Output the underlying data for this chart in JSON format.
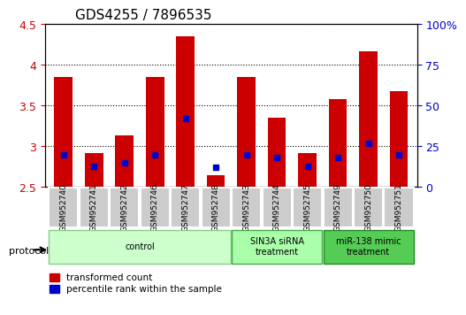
{
  "title": "GDS4255 / 7896535",
  "samples": [
    "GSM952740",
    "GSM952741",
    "GSM952742",
    "GSM952746",
    "GSM952747",
    "GSM952748",
    "GSM952743",
    "GSM952744",
    "GSM952745",
    "GSM952749",
    "GSM952750",
    "GSM952751"
  ],
  "transformed_count": [
    3.85,
    2.92,
    3.13,
    3.85,
    4.35,
    2.65,
    3.85,
    3.35,
    2.92,
    3.58,
    4.17,
    3.68
  ],
  "percentile_rank": [
    20,
    13,
    15,
    20,
    42,
    12,
    20,
    18,
    13,
    18,
    27,
    20
  ],
  "ylim_left": [
    2.5,
    4.5
  ],
  "ylim_right": [
    0,
    100
  ],
  "yticks_left": [
    2.5,
    3.0,
    3.5,
    4.0,
    4.5
  ],
  "yticks_right": [
    0,
    25,
    50,
    75,
    100
  ],
  "ytick_labels_left": [
    "2.5",
    "3",
    "3.5",
    "4",
    "4.5"
  ],
  "ytick_labels_right": [
    "0",
    "25",
    "50",
    "75",
    "100%"
  ],
  "bar_color": "#cc0000",
  "dot_color": "#0000cc",
  "bar_width": 0.6,
  "groups": [
    {
      "label": "control",
      "indices": [
        0,
        1,
        2,
        3,
        4,
        5
      ],
      "color": "#ccffcc",
      "edge_color": "#88cc88"
    },
    {
      "label": "SIN3A siRNA\ntreatment",
      "indices": [
        6,
        7,
        8
      ],
      "color": "#aaffaa",
      "edge_color": "#44aa44"
    },
    {
      "label": "miR-138 mimic\ntreatment",
      "indices": [
        9,
        10,
        11
      ],
      "color": "#44cc44",
      "edge_color": "#228822"
    }
  ],
  "protocol_label": "protocol",
  "legend_red": "transformed count",
  "legend_blue": "percentile rank within the sample",
  "grid_color": "#000000",
  "tick_color_left": "#cc0000",
  "tick_color_right": "#0000cc",
  "background_color": "#ffffff",
  "plot_bg_color": "#ffffff",
  "xlabel_area_color": "#cccccc"
}
